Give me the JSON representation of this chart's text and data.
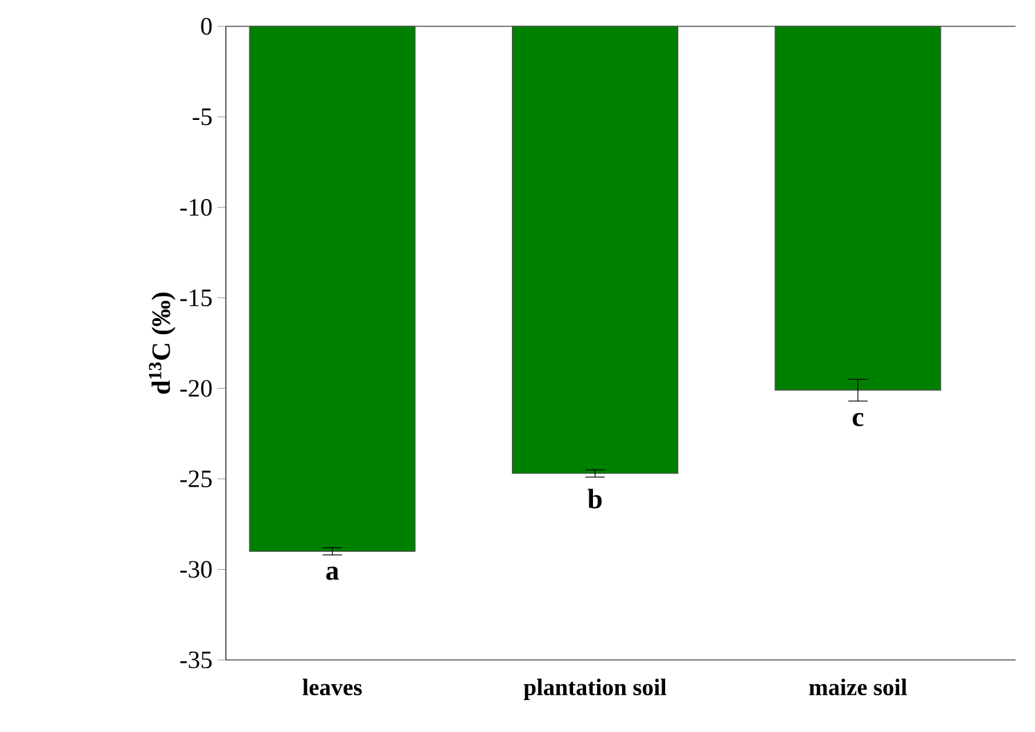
{
  "chart_data": {
    "type": "bar",
    "ylabel": "d$^{13}$C (‰)",
    "categories": [
      "leaves",
      "plantation soil",
      "maize soil"
    ],
    "values": [
      -29.0,
      -24.7,
      -20.1
    ],
    "errors": [
      0.2,
      0.2,
      0.6
    ],
    "color": "#008000",
    "ylim": [
      -35,
      0
    ],
    "yticks": [
      0,
      -5,
      -10,
      -15,
      -20,
      -25,
      -30,
      -35
    ],
    "annotations": [
      {
        "text": "a",
        "x": "leaves",
        "y": -29.0
      },
      {
        "text": "b",
        "x": "plantation soil",
        "y": -24.7
      },
      {
        "text": "c",
        "x": "maize soil",
        "y": -20.1
      }
    ]
  }
}
